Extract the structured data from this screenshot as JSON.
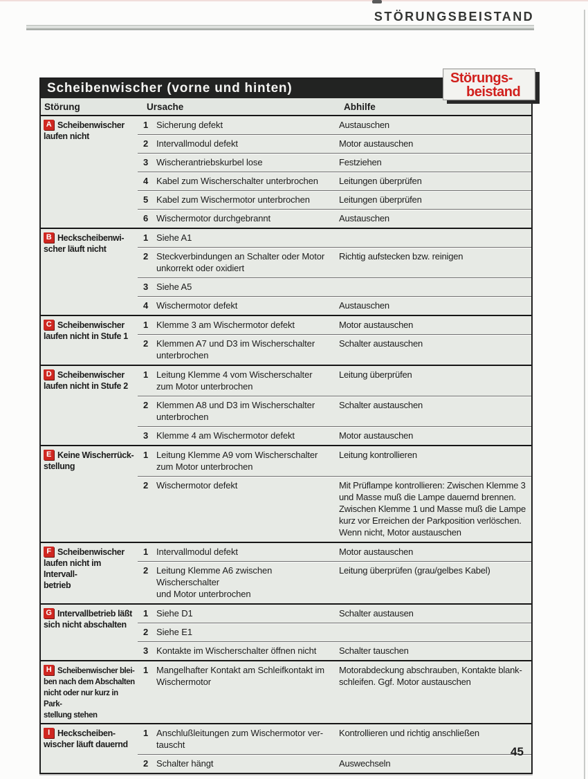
{
  "header": {
    "title": "STÖRUNGSBEISTAND"
  },
  "page_number": "45",
  "badge": {
    "line1": "Störungs-",
    "line2": "beistand",
    "text_color": "#d1201d"
  },
  "table": {
    "title": "Scheibenwischer (vorne und hinten)",
    "columns": [
      "Störung",
      "Ursache",
      "Abhilfe"
    ],
    "accent_red": "#cf2721",
    "groups": [
      {
        "letter": "A",
        "fault": "Scheibenwischer\nlaufen nicht",
        "rows": [
          {
            "num": "1",
            "cause": "Sicherung defekt",
            "remedy": "Austauschen"
          },
          {
            "num": "2",
            "cause": "Intervallmodul defekt",
            "remedy": "Motor austauschen"
          },
          {
            "num": "3",
            "cause": "Wischerantriebskurbel lose",
            "remedy": "Festziehen"
          },
          {
            "num": "4",
            "cause": "Kabel zum Wischerschalter unterbrochen",
            "remedy": "Leitungen überprüfen"
          },
          {
            "num": "5",
            "cause": "Kabel zum Wischermotor unterbrochen",
            "remedy": "Leitungen überprüfen"
          },
          {
            "num": "6",
            "cause": "Wischermotor durchgebrannt",
            "remedy": "Austauschen"
          }
        ]
      },
      {
        "letter": "B",
        "fault": "Heckscheibenwi-\nscher läuft nicht",
        "rows": [
          {
            "num": "1",
            "cause": "Siehe A1",
            "remedy": ""
          },
          {
            "num": "2",
            "cause": "Steckverbindungen an Schalter oder Motor\nunkorrekt oder oxidiert",
            "remedy": "Richtig aufstecken bzw. reinigen"
          },
          {
            "num": "3",
            "cause": "Siehe A5",
            "remedy": ""
          },
          {
            "num": "4",
            "cause": "Wischermotor defekt",
            "remedy": "Austauschen"
          }
        ]
      },
      {
        "letter": "C",
        "fault": "Scheibenwischer\nlaufen nicht in Stufe 1",
        "rows": [
          {
            "num": "1",
            "cause": "Klemme 3 am Wischermotor defekt",
            "remedy": "Motor austauschen"
          },
          {
            "num": "2",
            "cause": "Klemmen A7 und D3 im Wischerschalter\nunterbrochen",
            "remedy": "Schalter austauschen"
          }
        ]
      },
      {
        "letter": "D",
        "fault": "Scheibenwischer\nlaufen nicht in Stufe 2",
        "rows": [
          {
            "num": "1",
            "cause": "Leitung Klemme 4 vom Wischerschalter\nzum Motor unterbrochen",
            "remedy": "Leitung überprüfen"
          },
          {
            "num": "2",
            "cause": "Klemmen A8 und D3 im Wischerschalter\nunterbrochen",
            "remedy": "Schalter austauschen"
          },
          {
            "num": "3",
            "cause": "Klemme 4 am Wischermotor defekt",
            "remedy": "Motor austauschen"
          }
        ]
      },
      {
        "letter": "E",
        "fault": "Keine Wischerrück-\nstellung",
        "rows": [
          {
            "num": "1",
            "cause": "Leitung Klemme A9 vom Wischerschalter\nzum Motor unterbrochen",
            "remedy": "Leitung kontrollieren"
          },
          {
            "num": "2",
            "cause": "Wischermotor defekt",
            "remedy": "Mit Prüflampe kontrollieren: Zwischen Klemme 3\nund Masse muß die Lampe dauernd brennen.\nZwischen Klemme 1 und Masse muß die Lampe\nkurz vor Erreichen der Parkposition verlöschen.\nWenn nicht, Motor austauschen"
          }
        ]
      },
      {
        "letter": "F",
        "fault": "Scheibenwischer\nlaufen nicht im Intervall-\nbetrieb",
        "rows": [
          {
            "num": "1",
            "cause": "Intervallmodul defekt",
            "remedy": "Motor austauschen"
          },
          {
            "num": "2",
            "cause": "Leitung Klemme A6 zwischen Wischerschalter\nund Motor unterbrochen",
            "remedy": "Leitung überprüfen (grau/gelbes Kabel)"
          }
        ]
      },
      {
        "letter": "G",
        "fault": "Intervallbetrieb läßt\nsich nicht abschalten",
        "rows": [
          {
            "num": "1",
            "cause": "Siehe D1",
            "remedy": "Schalter austausen"
          },
          {
            "num": "2",
            "cause": "Siehe E1",
            "remedy": ""
          },
          {
            "num": "3",
            "cause": "Kontakte im Wischerschalter öffnen nicht",
            "remedy": "Schalter tauschen"
          }
        ]
      },
      {
        "letter": "H",
        "fault": "Scheibenwischer blei-\nben nach dem Abschalten\nnicht oder nur kurz in Park-\nstellung stehen",
        "rows": [
          {
            "num": "1",
            "cause": "Mangelhafter Kontakt am Schleifkontakt im\nWischermotor",
            "remedy": "Motorabdeckung abschrauben, Kontakte blank-\nschleifen. Ggf. Motor austauschen"
          }
        ]
      },
      {
        "letter": "I",
        "fault": "Heckscheiben-\nwischer läuft dauernd",
        "rows": [
          {
            "num": "1",
            "cause": "Anschlußleitungen zum Wischermotor ver-\ntauscht",
            "remedy": "Kontrollieren und richtig anschließen"
          },
          {
            "num": "2",
            "cause": "Schalter hängt",
            "remedy": "Auswechseln"
          }
        ]
      }
    ]
  }
}
